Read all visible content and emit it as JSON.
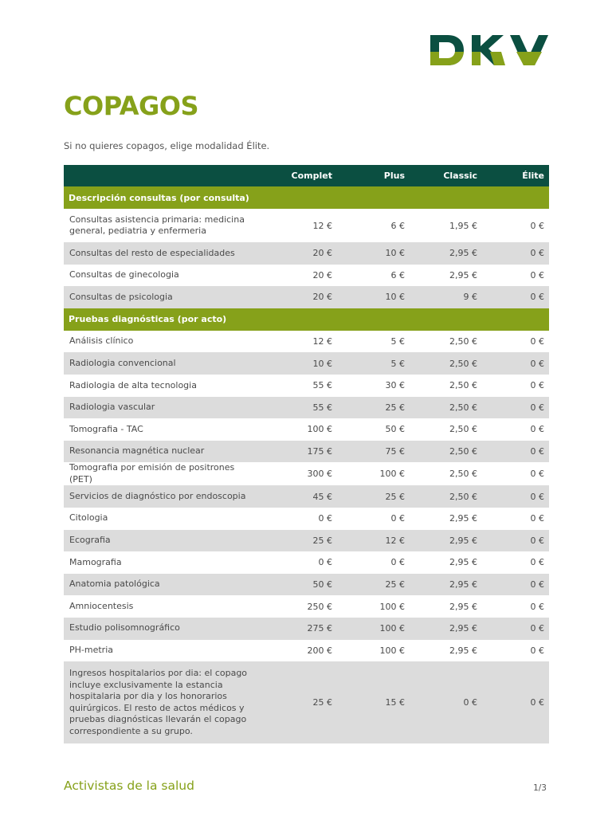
{
  "brand": {
    "logo_text": "DKV",
    "colors": {
      "dark_green": "#0b4f41",
      "lime": "#86a11a"
    }
  },
  "title": "COPAGOS",
  "intro": "Si no quieres copagos, elige modalidad Élite.",
  "table": {
    "headers": [
      "",
      "Complet",
      "Plus",
      "Classic",
      "Élite"
    ],
    "sections": [
      {
        "title": "Descripción consultas (por consulta)",
        "rows": [
          {
            "label": "Consultas asistencia primaria: medicina general, pediatria y enfermeria",
            "values": [
              "12 €",
              "6 €",
              "1,95 €",
              "0 €"
            ]
          },
          {
            "label": "Consultas del resto de especialidades",
            "values": [
              "20 €",
              "10 €",
              "2,95 €",
              "0 €"
            ]
          },
          {
            "label": "Consultas de ginecologia",
            "values": [
              "20 €",
              "6 €",
              "2,95 €",
              "0 €"
            ]
          },
          {
            "label": "Consultas de psicologia",
            "values": [
              "20 €",
              "10 €",
              "9 €",
              "0 €"
            ]
          }
        ]
      },
      {
        "title": "Pruebas diagnósticas (por acto)",
        "rows": [
          {
            "label": "Análisis clínico",
            "values": [
              "12 €",
              "5 €",
              "2,50 €",
              "0 €"
            ]
          },
          {
            "label": "Radiologia convencional",
            "values": [
              "10 €",
              "5 €",
              "2,50 €",
              "0 €"
            ]
          },
          {
            "label": "Radiologia de alta tecnologia",
            "values": [
              "55 €",
              "30 €",
              "2,50 €",
              "0 €"
            ]
          },
          {
            "label": "Radiologia vascular",
            "values": [
              "55 €",
              "25 €",
              "2,50 €",
              "0 €"
            ]
          },
          {
            "label": "Tomografia - TAC",
            "values": [
              "100 €",
              "50 €",
              "2,50 €",
              "0 €"
            ]
          },
          {
            "label": "Resonancia magnética nuclear",
            "values": [
              "175 €",
              "75 €",
              "2,50 €",
              "0 €"
            ]
          },
          {
            "label": "Tomografia por emisión de positrones (PET)",
            "values": [
              "300 €",
              "100 €",
              "2,50 €",
              "0 €"
            ]
          },
          {
            "label": "Servicios de diagnóstico por endoscopia",
            "values": [
              "45 €",
              "25 €",
              "2,50 €",
              "0 €"
            ]
          },
          {
            "label": "Citologia",
            "values": [
              "0 €",
              "0 €",
              "2,95 €",
              "0 €"
            ]
          },
          {
            "label": "Ecografia",
            "values": [
              "25 €",
              "12 €",
              "2,95 €",
              "0 €"
            ]
          },
          {
            "label": "Mamografia",
            "values": [
              "0 €",
              "0 €",
              "2,95 €",
              "0 €"
            ]
          },
          {
            "label": "Anatomia patológica",
            "values": [
              "50 €",
              "25 €",
              "2,95 €",
              "0 €"
            ]
          },
          {
            "label": "Amniocentesis",
            "values": [
              "250 €",
              "100 €",
              "2,95 €",
              "0 €"
            ]
          },
          {
            "label": "Estudio polisomnográfico",
            "values": [
              "275 €",
              "100 €",
              "2,95 €",
              "0 €"
            ]
          },
          {
            "label": "PH-metria",
            "values": [
              "200 €",
              "100 €",
              "2,95 €",
              "0 €"
            ]
          },
          {
            "label": "Ingresos hospitalarios por dia: el copago incluye exclusivamente la estancia hospitalaria por dia y los honorarios quirúrgicos. El resto de actos médicos y pruebas diagnósticas llevarán el copago correspondiente a su grupo.",
            "values": [
              "25 €",
              "15 €",
              "0 €",
              "0 €"
            ]
          }
        ]
      }
    ]
  },
  "footer": {
    "brand_text": "Activistas de la salud",
    "page": "1/3"
  }
}
